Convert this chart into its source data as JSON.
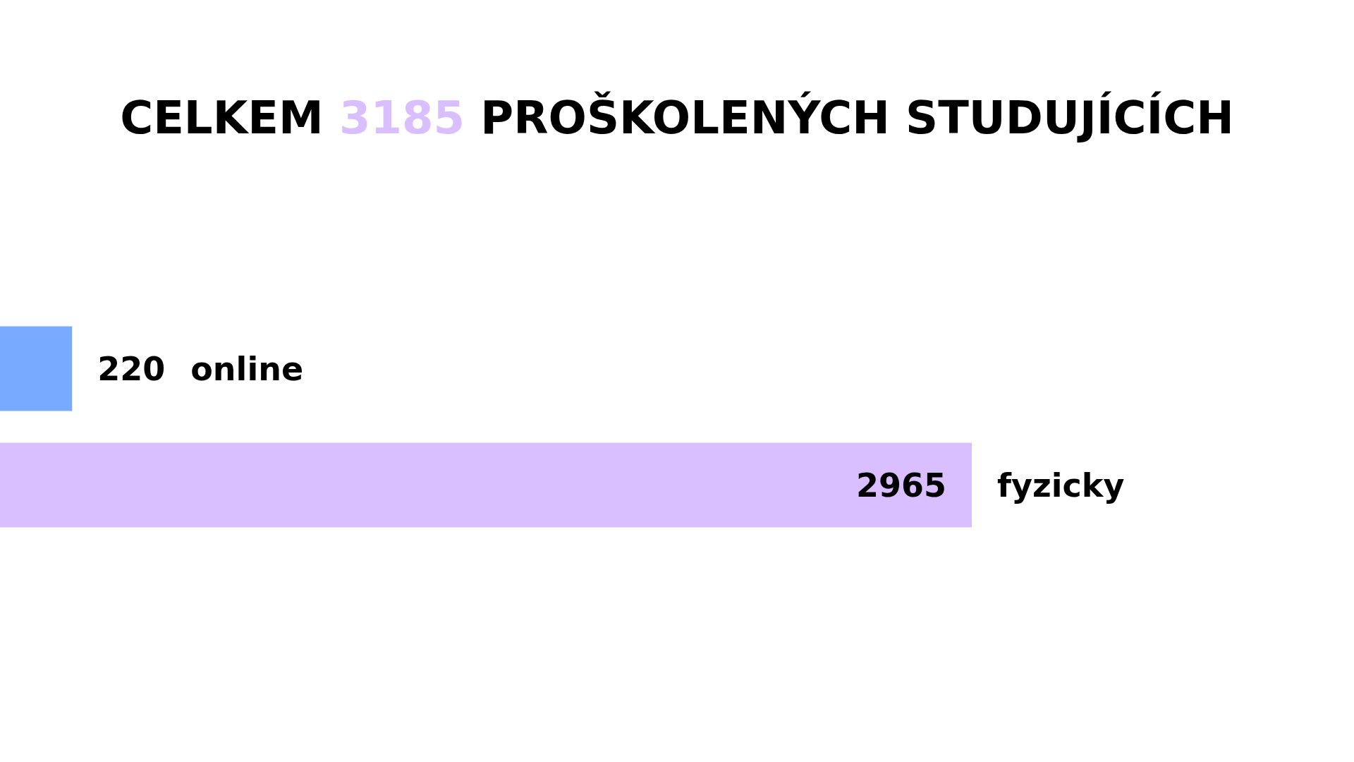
{
  "chart_data": {
    "type": "bar",
    "orientation": "horizontal",
    "title": "CELKEM 3185 PROŠKOLENÝCH STUDUJÍCÍCH",
    "categories": [
      "online",
      "fyzicky"
    ],
    "values": [
      220,
      2965
    ],
    "colors": [
      "#78abff",
      "#d9bfff"
    ],
    "data_labels": true
  }
}
